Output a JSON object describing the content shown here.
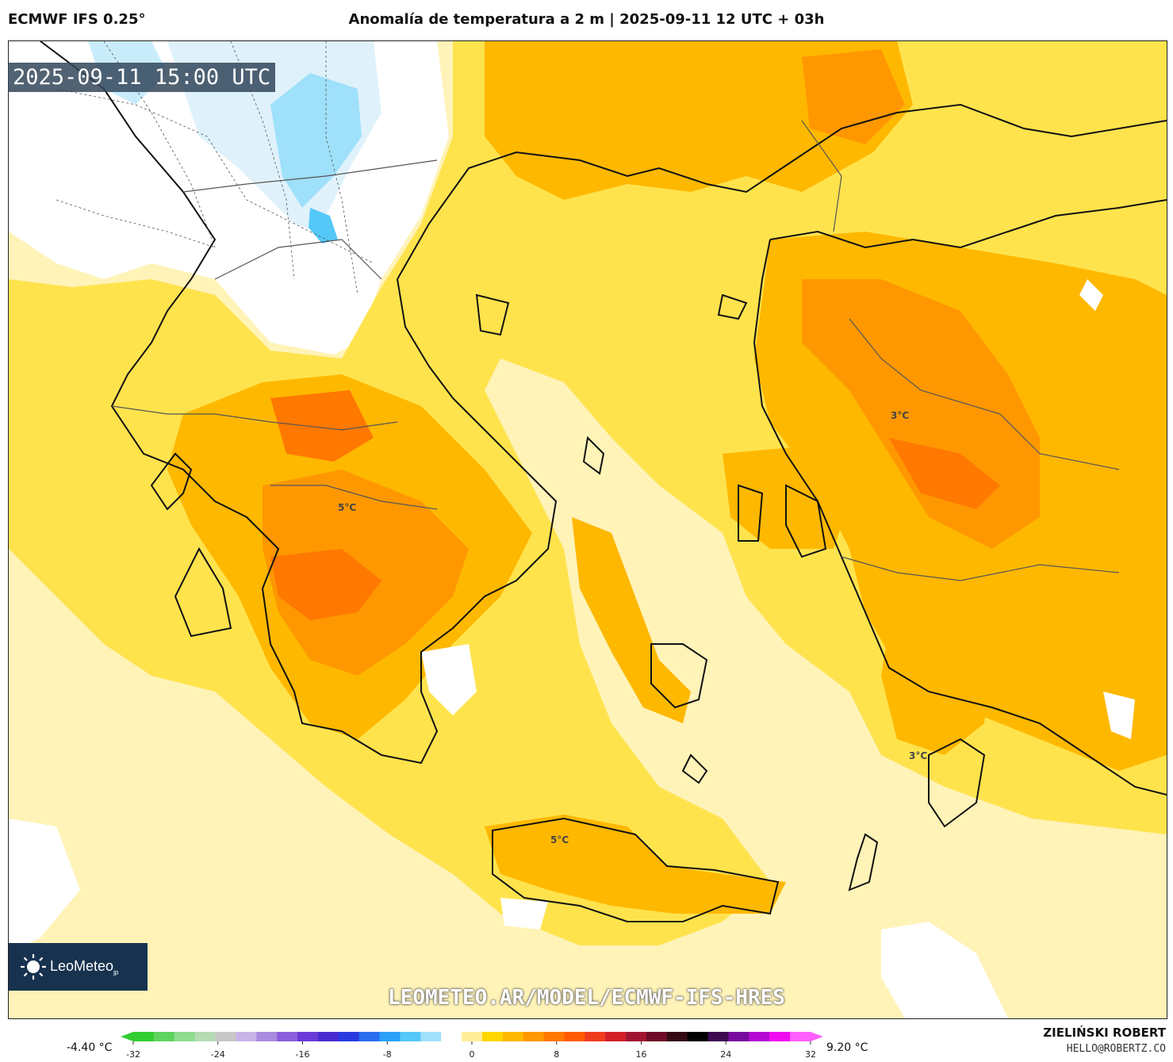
{
  "header": {
    "model": "ECMWF IFS 0.25°",
    "title": "Anomalía de temperatura a 2 m | 2025-09-11 12 UTC + 03h"
  },
  "valid_time": "2025-09-11 15:00 UTC",
  "map_labels": [
    {
      "text": "5°C"
    },
    {
      "text": "3°C"
    },
    {
      "text": "5°C"
    },
    {
      "text": "3°C"
    }
  ],
  "logo": {
    "name": "LeoMeteo",
    "suffix": "jp"
  },
  "watermark_url": "LEOMETEO.AR/MODEL/ECMWF-IFS-HRES",
  "colorbar": {
    "min_label": "-4.40 °C",
    "max_label": "9.20 °C",
    "ticks": [
      "-32",
      "-24",
      "-16",
      "-8",
      "0",
      "8",
      "16",
      "24",
      "32"
    ],
    "colors": [
      "#32cd32",
      "#5ed35e",
      "#8fdc8f",
      "#b5dcb5",
      "#c7c7c7",
      "#c8b4e6",
      "#a98be0",
      "#8a5fdc",
      "#6a3ad8",
      "#4a2ad0",
      "#2a3ae0",
      "#2a6ef0",
      "#2aa0f8",
      "#55c8f8",
      "#9fe0fa",
      "#ffffff",
      "#ffee99",
      "#ffd700",
      "#ffb800",
      "#ff9800",
      "#ff7800",
      "#ff5a00",
      "#f03c1e",
      "#d21e28",
      "#a01432",
      "#6e0a28",
      "#320a14",
      "#000000",
      "#3c0a50",
      "#780aa0",
      "#b40ad2",
      "#f00af0",
      "#ff60ff"
    ]
  },
  "author": "ZIELIŃSKI ROBERT",
  "email": "HELLO@ROBERTZ.CO"
}
